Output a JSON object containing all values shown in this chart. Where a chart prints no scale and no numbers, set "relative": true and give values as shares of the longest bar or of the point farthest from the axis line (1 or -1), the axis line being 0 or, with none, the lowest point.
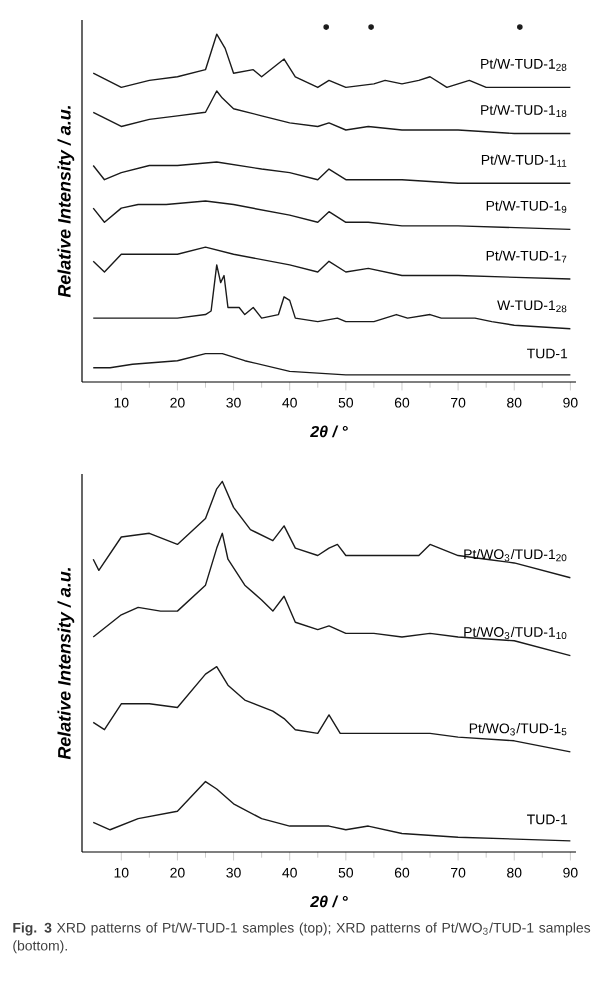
{
  "chart_data": [
    {
      "type": "line",
      "relative": true,
      "xlabel": "2θ / °",
      "ylabel": "Relative Intensity / a.u.",
      "xlim": [
        3,
        91
      ],
      "xticks": [
        10,
        20,
        30,
        40,
        50,
        60,
        70,
        80,
        90
      ],
      "line_style": "solid",
      "series": [
        {
          "name": "Pt/W-TUD-1$_{28}$",
          "color": "#1a1a1a",
          "x": [
            5,
            10,
            15,
            20,
            25,
            27,
            28.5,
            30,
            33.5,
            35,
            39,
            41,
            45,
            47,
            50,
            55,
            57,
            60,
            63,
            65,
            68,
            72,
            75,
            80,
            90
          ],
          "values": [
            0.87,
            0.83,
            0.85,
            0.86,
            0.88,
            0.98,
            0.94,
            0.87,
            0.88,
            0.86,
            0.91,
            0.86,
            0.83,
            0.85,
            0.83,
            0.84,
            0.85,
            0.84,
            0.85,
            0.86,
            0.83,
            0.85,
            0.83,
            0.83,
            0.83
          ]
        },
        {
          "name": "Pt/W-TUD-1$_{18}$",
          "color": "#1a1a1a",
          "x": [
            5,
            10,
            15,
            20,
            25,
            27,
            28,
            30,
            35,
            40,
            45,
            47,
            50,
            54,
            60,
            70,
            80,
            90
          ],
          "values": [
            0.76,
            0.72,
            0.74,
            0.75,
            0.76,
            0.82,
            0.8,
            0.77,
            0.75,
            0.73,
            0.72,
            0.73,
            0.71,
            0.72,
            0.71,
            0.71,
            0.7,
            0.7
          ]
        },
        {
          "name": "Pt/W-TUD-1$_{11}$",
          "color": "#1a1a1a",
          "x": [
            5,
            7,
            10,
            15,
            20,
            27,
            35,
            40,
            45,
            47,
            50,
            60,
            70,
            90
          ],
          "values": [
            0.61,
            0.57,
            0.59,
            0.61,
            0.61,
            0.62,
            0.6,
            0.59,
            0.57,
            0.6,
            0.57,
            0.57,
            0.56,
            0.56
          ]
        },
        {
          "name": "Pt/W-TUD-1$_{9}$",
          "color": "#1a1a1a",
          "x": [
            5,
            7,
            10,
            13,
            18,
            25,
            30,
            40,
            45,
            47,
            50,
            54,
            60,
            70,
            90
          ],
          "values": [
            0.49,
            0.45,
            0.49,
            0.5,
            0.5,
            0.51,
            0.5,
            0.47,
            0.45,
            0.48,
            0.45,
            0.45,
            0.44,
            0.44,
            0.43
          ]
        },
        {
          "name": "Pt/W-TUD-1$_{7}$",
          "color": "#1a1a1a",
          "x": [
            5,
            7,
            10,
            15,
            20,
            25,
            30,
            40,
            45,
            47,
            50,
            54,
            60,
            70,
            90
          ],
          "values": [
            0.34,
            0.31,
            0.36,
            0.36,
            0.36,
            0.38,
            0.36,
            0.33,
            0.31,
            0.34,
            0.31,
            0.32,
            0.3,
            0.3,
            0.29
          ]
        },
        {
          "name": "W-TUD-1$_{28}$",
          "color": "#1a1a1a",
          "x": [
            5,
            10,
            20,
            25,
            26,
            27,
            27.7,
            28.3,
            29,
            31,
            32,
            33.5,
            35,
            38,
            39,
            40,
            41,
            45,
            48.5,
            50,
            55,
            59,
            61,
            65,
            67,
            73,
            76,
            80,
            90
          ],
          "values": [
            0.18,
            0.18,
            0.18,
            0.19,
            0.2,
            0.33,
            0.28,
            0.3,
            0.21,
            0.21,
            0.19,
            0.21,
            0.18,
            0.19,
            0.24,
            0.23,
            0.18,
            0.17,
            0.18,
            0.17,
            0.17,
            0.19,
            0.18,
            0.19,
            0.18,
            0.18,
            0.17,
            0.16,
            0.15
          ]
        },
        {
          "name": "TUD-1",
          "color": "#1a1a1a",
          "x": [
            5,
            8,
            12,
            20,
            25,
            28,
            32,
            40,
            50,
            60,
            90
          ],
          "values": [
            0.04,
            0.04,
            0.05,
            0.06,
            0.08,
            0.08,
            0.06,
            0.03,
            0.02,
            0.02,
            0.02
          ]
        },
        {
          "type": "scatter",
          "marker": "circle",
          "color": "#1a1a1a",
          "x": [
            46.5,
            54.5,
            81
          ],
          "values": [
            1,
            1,
            1
          ]
        }
      ]
    },
    {
      "type": "line",
      "relative": true,
      "xlabel": "2θ / °",
      "ylabel": "Relative Intensity / a.u.",
      "xlim": [
        3,
        91
      ],
      "xticks": [
        10,
        20,
        30,
        40,
        50,
        60,
        70,
        80,
        90
      ],
      "line_style": "solid",
      "annotations": [
        "**Fig. 3** XRD patterns of Pt/W-TUD-1 samples (top); XRD patterns of Pt/WO$_{3}$/TUD-1 samples (bottom)."
      ],
      "series": [
        {
          "name": "Pt/WO$_{3}$/TUD-1$_{20}$",
          "color": "#1a1a1a",
          "x": [
            5,
            6,
            10,
            15,
            20,
            25,
            27,
            28,
            30,
            33,
            37,
            39,
            41,
            45,
            47,
            48.5,
            50,
            55,
            63,
            65,
            70,
            75,
            80,
            90
          ],
          "values": [
            0.79,
            0.76,
            0.85,
            0.86,
            0.83,
            0.9,
            0.98,
            1.0,
            0.93,
            0.87,
            0.84,
            0.88,
            0.82,
            0.8,
            0.82,
            0.83,
            0.8,
            0.8,
            0.8,
            0.83,
            0.8,
            0.79,
            0.78,
            0.74
          ]
        },
        {
          "name": "Pt/WO$_{3}$/TUD-1$_{10}$",
          "color": "#1a1a1a",
          "x": [
            5,
            10,
            13,
            17,
            20,
            25,
            27,
            28,
            29,
            32,
            35,
            37,
            39,
            41,
            45,
            47,
            50,
            55,
            60,
            65,
            70,
            80,
            90
          ],
          "values": [
            0.58,
            0.64,
            0.66,
            0.65,
            0.65,
            0.72,
            0.82,
            0.86,
            0.79,
            0.72,
            0.68,
            0.65,
            0.69,
            0.62,
            0.6,
            0.61,
            0.59,
            0.59,
            0.58,
            0.59,
            0.58,
            0.57,
            0.53
          ]
        },
        {
          "name": "Pt/WO$_{3}$/TUD-1$_{5}$",
          "color": "#1a1a1a",
          "x": [
            5,
            7,
            10,
            15,
            20,
            25,
            27,
            29,
            32,
            37,
            39,
            41,
            45,
            47,
            49,
            55,
            65,
            70,
            80,
            90
          ],
          "values": [
            0.35,
            0.33,
            0.4,
            0.4,
            0.39,
            0.48,
            0.5,
            0.45,
            0.41,
            0.38,
            0.36,
            0.33,
            0.32,
            0.37,
            0.32,
            0.32,
            0.32,
            0.31,
            0.3,
            0.27
          ]
        },
        {
          "name": "TUD-1",
          "color": "#1a1a1a",
          "x": [
            5,
            8,
            13,
            20,
            25,
            27,
            30,
            35,
            40,
            47,
            50,
            54,
            60,
            70,
            90
          ],
          "values": [
            0.08,
            0.06,
            0.09,
            0.11,
            0.19,
            0.17,
            0.13,
            0.09,
            0.07,
            0.07,
            0.06,
            0.07,
            0.05,
            0.04,
            0.03
          ]
        }
      ]
    }
  ]
}
